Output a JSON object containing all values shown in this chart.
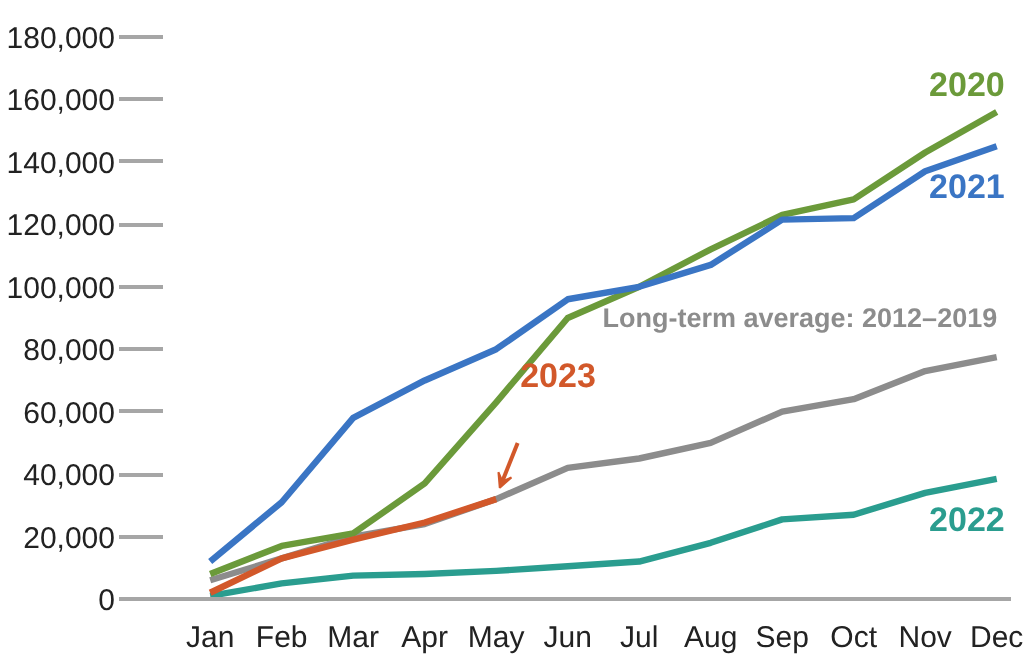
{
  "chart_data": {
    "type": "line",
    "categories": [
      "Jan",
      "Feb",
      "Mar",
      "Apr",
      "May",
      "Jun",
      "Jul",
      "Aug",
      "Sep",
      "Oct",
      "Nov",
      "Dec"
    ],
    "series": [
      {
        "name": "Long-term average:  2012–2019",
        "color": "#8c8c8c",
        "values": [
          6000,
          13000,
          20000,
          24000,
          32000,
          42000,
          45000,
          50000,
          60000,
          64000,
          73000,
          77500
        ]
      },
      {
        "name": "2022",
        "color": "#2a9d8f",
        "values": [
          1000,
          5000,
          7500,
          8000,
          9000,
          10500,
          12000,
          18000,
          25500,
          27000,
          34000,
          38500
        ]
      },
      {
        "name": "2020",
        "color": "#6b9a3a",
        "values": [
          8000,
          17000,
          21000,
          37000,
          63000,
          90000,
          100000,
          112000,
          123000,
          128000,
          143000,
          156000
        ]
      },
      {
        "name": "2021",
        "color": "#3a75c4",
        "values": [
          12000,
          31000,
          58000,
          70000,
          80000,
          96000,
          100000,
          107000,
          121500,
          122000,
          137000,
          145000
        ]
      },
      {
        "name": "2023",
        "color": "#d2582a",
        "values": [
          2000,
          13000,
          19000,
          24500,
          32000,
          null,
          null,
          null,
          null,
          null,
          null,
          null
        ]
      }
    ],
    "ylim": [
      0,
      180000
    ],
    "yticks": [
      {
        "value": 0,
        "label": "0"
      },
      {
        "value": 20000,
        "label": "20,000"
      },
      {
        "value": 40000,
        "label": "40,000"
      },
      {
        "value": 60000,
        "label": "60,000"
      },
      {
        "value": 80000,
        "label": "80,000"
      },
      {
        "value": 100000,
        "label": "100,000"
      },
      {
        "value": 120000,
        "label": "120,000"
      },
      {
        "value": 140000,
        "label": "140,000"
      },
      {
        "value": 160000,
        "label": "160,000"
      },
      {
        "value": 180000,
        "label": "180,000"
      }
    ],
    "grid": false,
    "marker": "none",
    "line_style": "solid"
  }
}
